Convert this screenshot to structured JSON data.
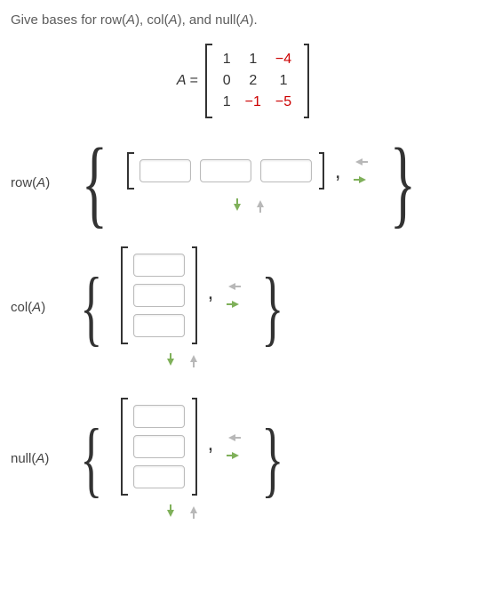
{
  "prompt_html": "Give bases for row(A), col(A), and null(A).",
  "matrix": {
    "lhs": "A =",
    "rows": [
      [
        "1",
        "1",
        "-4"
      ],
      [
        "0",
        "2",
        "1"
      ],
      [
        "1",
        "-1",
        "-5"
      ]
    ],
    "neg_color": "#cc0000"
  },
  "sections": [
    {
      "id": "rowA",
      "label": "row(A)",
      "kind": "row",
      "vec_len": 3,
      "num_vecs": 1
    },
    {
      "id": "colA",
      "label": "col(A)",
      "kind": "col",
      "vec_len": 3,
      "num_vecs": 1
    },
    {
      "id": "nullA",
      "label": "null(A)",
      "kind": "col",
      "vec_len": 3,
      "num_vecs": 1
    }
  ],
  "colors": {
    "arrow_green": "#7fb05a",
    "arrow_grey": "#b8b8b8",
    "text": "#333333",
    "input_border": "#bbbbbb"
  }
}
